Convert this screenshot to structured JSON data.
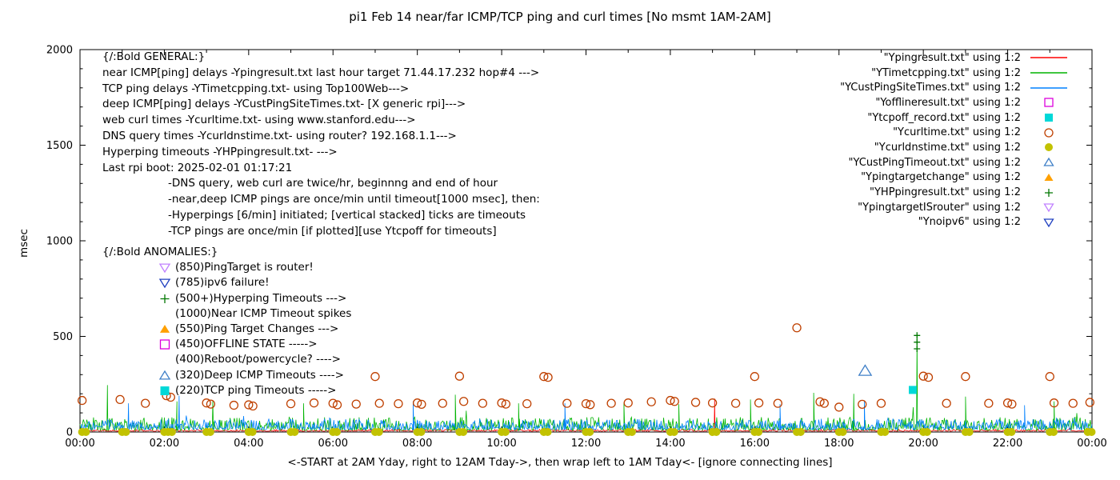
{
  "title": "pi1 Feb 14  near/far ICMP/TCP ping and curl times [No msmt 1AM-2AM]",
  "general": {
    "heading": "{/:Bold GENERAL:}",
    "lines": [
      "near ICMP[ping] delays -Ypingresult.txt last hour target 71.44.17.232 hop#4 --->",
      "TCP ping delays -YTimetcpping.txt- using Top100Web--->",
      "deep ICMP[ping] delays -YCustPingSiteTimes.txt- [X generic rpi]--->",
      "web curl times -Ycurltime.txt- using www.stanford.edu--->",
      "DNS query times -Ycurldnstime.txt- using router? 192.168.1.1--->",
      "Hyperping timeouts -YHPpingresult.txt- --->",
      "Last rpi boot: 2025-02-01 01:17:21"
    ],
    "details": [
      "-DNS query, web curl are twice/hr, beginnng and end of hour",
      "-near,deep ICMP pings are once/min until timeout[1000 msec], then:",
      "-Hyperpings [6/min] initiated; [vertical stacked] ticks are timeouts",
      "-TCP pings are once/min [if plotted][use Ytcpoff for timeouts]"
    ]
  },
  "anomalies": {
    "heading": "{/:Bold ANOMALIES:}",
    "items": [
      {
        "marker": "open-triangle-down",
        "color": "#c080ff",
        "label": "(850)PingTarget is router!"
      },
      {
        "marker": "open-triangle-down",
        "color": "#2040c0",
        "label": "(785)ipv6 failure!"
      },
      {
        "marker": "plus",
        "color": "#007700",
        "label": "(500+)Hyperping Timeouts --->"
      },
      {
        "marker": "none",
        "color": "#000000",
        "label": "(1000)Near ICMP Timeout spikes"
      },
      {
        "marker": "filled-triangle-up",
        "color": "#ffa000",
        "label": "(550)Ping Target Changes --->"
      },
      {
        "marker": "open-square",
        "color": "#dd00dd",
        "label": "(450)OFFLINE STATE ----->"
      },
      {
        "marker": "none",
        "color": "#000000",
        "label": "(400)Reboot/powercycle? ---->"
      },
      {
        "marker": "open-triangle-up",
        "color": "#4080c8",
        "label": "(320)Deep ICMP Timeouts ---->"
      },
      {
        "marker": "filled-square",
        "color": "#00d8d8",
        "label": "(220)TCP ping Timeouts ----->"
      }
    ]
  },
  "legend": [
    {
      "label": "\"Ypingresult.txt\" using 1:2",
      "marker": "line",
      "color": "#ff0000"
    },
    {
      "label": "\"YTimetcpping.txt\" using 1:2",
      "marker": "line",
      "color": "#00b400"
    },
    {
      "label": "\"YCustPingSiteTimes.txt\" using 1:2",
      "marker": "line",
      "color": "#0080ff"
    },
    {
      "label": "\"Yofflineresult.txt\" using 1:2",
      "marker": "open-square",
      "color": "#dd00dd"
    },
    {
      "label": "\"Ytcpoff_record.txt\" using 1:2",
      "marker": "filled-square",
      "color": "#00d8d8"
    },
    {
      "label": "\"Ycurltime.txt\" using 1:2",
      "marker": "open-circle",
      "color": "#bf4000"
    },
    {
      "label": "\"Ycurldnstime.txt\" using 1:2",
      "marker": "filled-circle",
      "color": "#c2c200"
    },
    {
      "label": "\"YCustPingTimeout.txt\" using 1:2",
      "marker": "open-triangle-up",
      "color": "#4080c8"
    },
    {
      "label": "\"Ypingtargetchange\" using 1:2",
      "marker": "filled-triangle-up",
      "color": "#ffa000"
    },
    {
      "label": "\"YHPpingresult.txt\" using 1:2",
      "marker": "plus",
      "color": "#007700"
    },
    {
      "label": "\"YpingtargetISrouter\" using 1:2",
      "marker": "open-triangle-down",
      "color": "#c080ff"
    },
    {
      "label": "\"Ynoipv6\" using 1:2",
      "marker": "open-triangle-down",
      "color": "#2040c0"
    }
  ],
  "chart_data": {
    "type": "line+scatter",
    "title": "pi1 Feb 14  near/far ICMP/TCP ping and curl times [No msmt 1AM-2AM]",
    "xlabel": "<-START at 2AM Yday, right to 12AM Tday->, then wrap left to 1AM Tday<- [ignore connecting lines]",
    "ylabel": "msec",
    "x_ticks": [
      "00:00",
      "02:00",
      "04:00",
      "06:00",
      "08:00",
      "10:00",
      "12:00",
      "14:00",
      "16:00",
      "18:00",
      "20:00",
      "22:00",
      "00:00"
    ],
    "y_ticks": [
      0,
      500,
      1000,
      1500,
      2000
    ],
    "x_range_hours": [
      0,
      24
    ],
    "ylim": [
      0,
      2000
    ],
    "grid": false,
    "legend_position": "top-right-inside",
    "line_series": [
      {
        "name": "Ypingresult.txt",
        "desc": "near ICMP ping delays",
        "color": "#ff0000",
        "baseline": 4,
        "noise_amp": 10,
        "seed": 11,
        "spikes_hour_msec": [
          [
            15.05,
            175
          ]
        ]
      },
      {
        "name": "YTimetcpping.txt",
        "desc": "TCP ping delays",
        "color": "#00b400",
        "baseline": 8,
        "noise_amp": 70,
        "seed": 5,
        "spikes_hour_msec": [
          [
            0.65,
            245
          ],
          [
            2.3,
            160
          ],
          [
            3.15,
            165
          ],
          [
            5.3,
            150
          ],
          [
            8.9,
            195
          ],
          [
            10.4,
            150
          ],
          [
            12.9,
            155
          ],
          [
            14.2,
            145
          ],
          [
            15.9,
            170
          ],
          [
            17.4,
            205
          ],
          [
            18.35,
            200
          ],
          [
            19.85,
            505
          ],
          [
            21.0,
            185
          ],
          [
            23.1,
            160
          ]
        ]
      },
      {
        "name": "YCustPingSiteTimes.txt",
        "desc": "deep ICMP ping delays",
        "color": "#0080ff",
        "baseline": 12,
        "noise_amp": 55,
        "seed": 9,
        "spikes_hour_msec": [
          [
            1.15,
            150
          ],
          [
            2.35,
            190
          ],
          [
            7.9,
            160
          ],
          [
            11.5,
            150
          ],
          [
            16.6,
            145
          ],
          [
            18.6,
            165
          ],
          [
            22.4,
            140
          ]
        ]
      }
    ],
    "scatter_series": [
      {
        "name": "Ycurltime.txt",
        "desc": "web curl times",
        "marker": "open-circle",
        "color": "#bf4000",
        "points_hour_msec": [
          [
            0.05,
            165
          ],
          [
            0.95,
            170
          ],
          [
            1.55,
            150
          ],
          [
            2.05,
            190
          ],
          [
            2.15,
            182
          ],
          [
            3.0,
            152
          ],
          [
            3.1,
            146
          ],
          [
            3.65,
            140
          ],
          [
            4.0,
            142
          ],
          [
            4.1,
            136
          ],
          [
            5.0,
            148
          ],
          [
            5.55,
            152
          ],
          [
            6.0,
            150
          ],
          [
            6.1,
            142
          ],
          [
            6.55,
            146
          ],
          [
            7.0,
            290
          ],
          [
            7.1,
            150
          ],
          [
            7.55,
            148
          ],
          [
            8.0,
            152
          ],
          [
            8.1,
            145
          ],
          [
            8.6,
            150
          ],
          [
            9.0,
            292
          ],
          [
            9.1,
            160
          ],
          [
            9.55,
            150
          ],
          [
            10.0,
            152
          ],
          [
            10.1,
            146
          ],
          [
            10.6,
            148
          ],
          [
            11.0,
            290
          ],
          [
            11.1,
            286
          ],
          [
            11.55,
            150
          ],
          [
            12.0,
            148
          ],
          [
            12.1,
            143
          ],
          [
            12.6,
            150
          ],
          [
            13.0,
            152
          ],
          [
            13.55,
            158
          ],
          [
            14.0,
            165
          ],
          [
            14.1,
            160
          ],
          [
            14.6,
            155
          ],
          [
            15.0,
            152
          ],
          [
            15.55,
            150
          ],
          [
            16.0,
            290
          ],
          [
            16.1,
            152
          ],
          [
            16.55,
            150
          ],
          [
            17.0,
            545
          ],
          [
            17.55,
            158
          ],
          [
            17.65,
            150
          ],
          [
            18.0,
            130
          ],
          [
            18.55,
            145
          ],
          [
            19.0,
            150
          ],
          [
            20.0,
            292
          ],
          [
            20.12,
            286
          ],
          [
            20.55,
            150
          ],
          [
            21.0,
            290
          ],
          [
            21.55,
            150
          ],
          [
            22.0,
            152
          ],
          [
            22.1,
            146
          ],
          [
            23.0,
            290
          ],
          [
            23.1,
            152
          ],
          [
            23.55,
            150
          ],
          [
            23.95,
            155
          ]
        ]
      },
      {
        "name": "Ycurldnstime.txt",
        "desc": "DNS query times",
        "marker": "filled-circle",
        "color": "#c2c200",
        "points_hour_msec": [
          [
            0.05,
            0
          ],
          [
            0.14,
            0
          ],
          [
            1.0,
            0
          ],
          [
            1.09,
            0
          ],
          [
            2.0,
            0
          ],
          [
            2.09,
            0
          ],
          [
            2.18,
            0
          ],
          [
            3.0,
            0
          ],
          [
            3.09,
            0
          ],
          [
            4.0,
            0
          ],
          [
            4.09,
            0
          ],
          [
            5.0,
            0
          ],
          [
            5.09,
            0
          ],
          [
            6.0,
            0
          ],
          [
            6.09,
            0
          ],
          [
            7.0,
            0
          ],
          [
            7.09,
            0
          ],
          [
            8.0,
            0
          ],
          [
            8.09,
            0
          ],
          [
            9.0,
            0
          ],
          [
            9.09,
            0
          ],
          [
            10.0,
            0
          ],
          [
            10.09,
            0
          ],
          [
            11.0,
            0
          ],
          [
            11.09,
            0
          ],
          [
            12.0,
            0
          ],
          [
            12.09,
            0
          ],
          [
            13.0,
            0
          ],
          [
            13.09,
            0
          ],
          [
            14.0,
            0
          ],
          [
            14.09,
            0
          ],
          [
            15.0,
            0
          ],
          [
            15.09,
            0
          ],
          [
            16.0,
            0
          ],
          [
            16.09,
            0
          ],
          [
            17.0,
            0
          ],
          [
            17.09,
            0
          ],
          [
            18.0,
            0
          ],
          [
            18.09,
            0
          ],
          [
            19.0,
            0
          ],
          [
            19.09,
            0
          ],
          [
            20.0,
            0
          ],
          [
            20.09,
            0
          ],
          [
            21.0,
            0
          ],
          [
            21.09,
            0
          ],
          [
            22.0,
            0
          ],
          [
            22.09,
            0
          ],
          [
            23.0,
            0
          ],
          [
            23.09,
            0
          ],
          [
            23.9,
            0
          ],
          [
            23.99,
            0
          ]
        ]
      },
      {
        "name": "YCustPingTimeout.txt",
        "desc": "deep ICMP timeout",
        "marker": "open-triangle-up",
        "color": "#4080c8",
        "points_hour_msec": [
          [
            18.62,
            320
          ]
        ]
      },
      {
        "name": "Ytcpoff_record.txt",
        "desc": "TCP ping timeout",
        "marker": "filled-square",
        "color": "#00d8d8",
        "points_hour_msec": [
          [
            19.75,
            220
          ]
        ]
      },
      {
        "name": "YHPpingresult.txt",
        "desc": "hyperping timeout stacked ticks",
        "marker": "plus",
        "color": "#007700",
        "points_hour_msec": [
          [
            19.85,
            505
          ],
          [
            19.85,
            470
          ],
          [
            19.85,
            435
          ]
        ]
      }
    ]
  }
}
